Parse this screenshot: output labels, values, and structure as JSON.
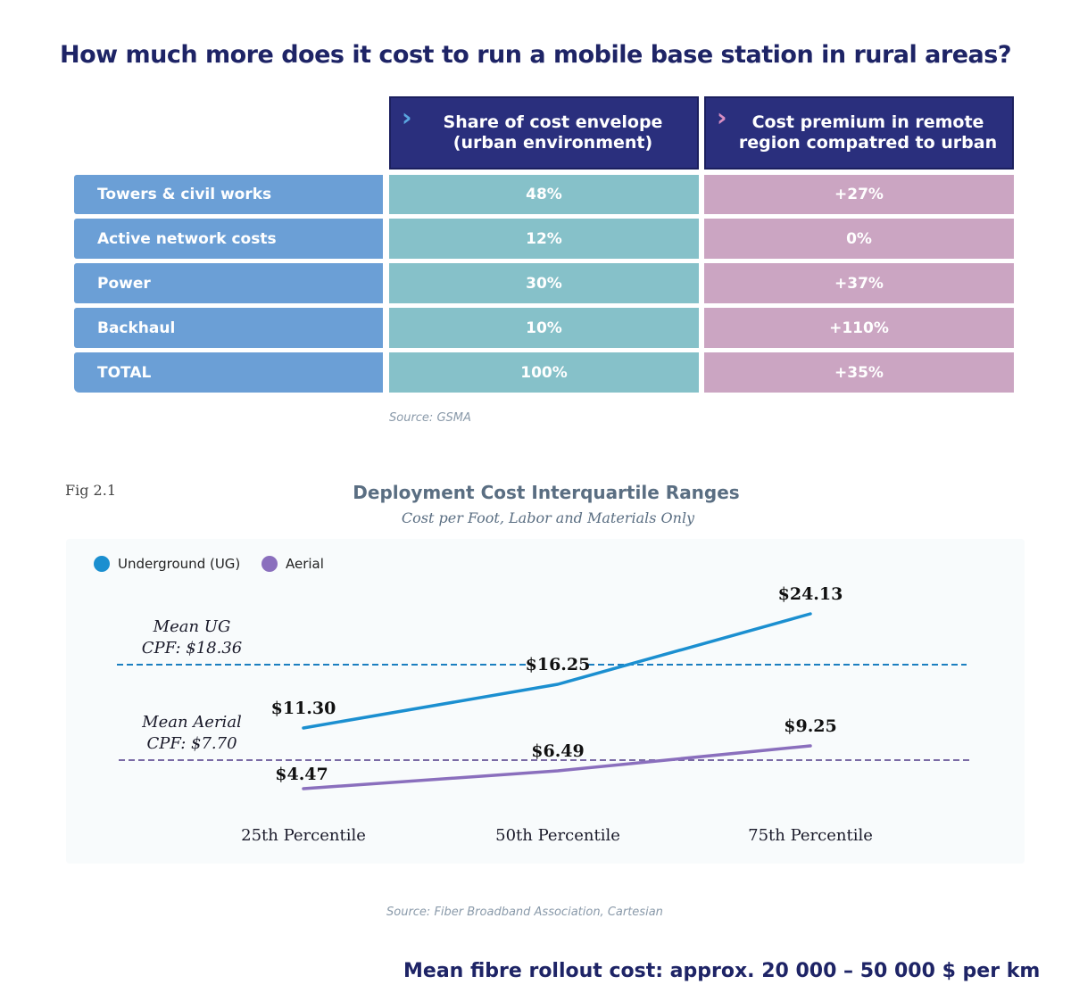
{
  "title": "How much more does it cost to run a mobile base station in rural areas?",
  "table": {
    "columns": [
      {
        "chevron": "›",
        "label": "Share of cost envelope (urban environment)",
        "chevron_color": "#5aa6e0"
      },
      {
        "chevron": "›",
        "label": "Cost premium in remote region compatred to urban",
        "chevron_color": "#d98fc3"
      }
    ],
    "rows": [
      {
        "label": "Towers & civil works",
        "share": "48%",
        "premium": "+27%"
      },
      {
        "label": "Active network costs",
        "share": "12%",
        "premium": "0%"
      },
      {
        "label": "Power",
        "share": "30%",
        "premium": "+37%"
      },
      {
        "label": "Backhaul",
        "share": "10%",
        "premium": "+110%"
      },
      {
        "label": "TOTAL",
        "share": "100%",
        "premium": "+35%"
      }
    ],
    "source": "Source: GSMA"
  },
  "figure": {
    "label": "Fig 2.1",
    "source": "Source: Fiber Broadband Association, Cartesian"
  },
  "chart_data": {
    "type": "line",
    "title": "Deployment Cost Interquartile Ranges",
    "subtitle": "Cost per Foot, Labor and Materials Only",
    "categories": [
      "25th Percentile",
      "50th Percentile",
      "75th Percentile"
    ],
    "series": [
      {
        "name": "Underground (UG)",
        "color": "#1b8fd0",
        "values": [
          11.3,
          16.25,
          24.13
        ],
        "labels": [
          "$11.30",
          "$16.25",
          "$24.13"
        ]
      },
      {
        "name": "Aerial",
        "color": "#8a6fbd",
        "values": [
          4.47,
          6.49,
          9.25
        ],
        "labels": [
          "$4.47",
          "$6.49",
          "$9.25"
        ]
      }
    ],
    "reference_lines": [
      {
        "value": 18.36,
        "label_line1": "Mean UG",
        "label_line2": "CPF: $18.36",
        "color": "#1b7fc0"
      },
      {
        "value": 7.7,
        "label_line1": "Mean Aerial",
        "label_line2": "CPF: $7.70",
        "color": "#7a6aa5"
      }
    ],
    "legend": "top-left",
    "grid": false
  },
  "footer": "Mean fibre rollout cost: approx. 20 000 – 50 000 $ per km"
}
